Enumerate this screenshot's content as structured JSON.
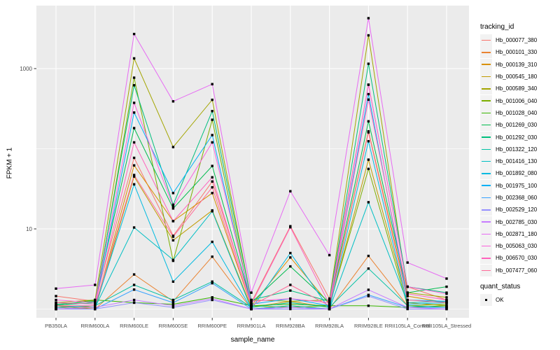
{
  "chart_data": {
    "type": "line",
    "title": "",
    "xlabel": "sample_name",
    "ylabel": "FPKM + 1",
    "y_scale": "log10",
    "y_ticks_labeled": [
      10,
      1000
    ],
    "y_gridlines_unlabeled": [
      1,
      100
    ],
    "ylim": [
      0.8,
      6000
    ],
    "grid": "on",
    "legend_position": "right",
    "legend_title": "tracking_id",
    "panel_bg": "#EBEBEB",
    "gridline_color": "#FFFFFF",
    "axis_text_color": "#4D4D4D",
    "tick_color": "#333333",
    "point_color": "#000000",
    "legend_key_bg": "#F2F2F2",
    "categories": [
      "PB350LA",
      "RRIM600LA",
      "RRIM600LE",
      "RRIM600SE",
      "RRIM600PE",
      "RRIM901LA",
      "RRIM928BA",
      "RRIM928LA",
      "RRIM928LE",
      "RRII105LA_Control",
      "RRII105LA_Stressed"
    ],
    "series": [
      {
        "name": "Hb_000077_380",
        "color": "#F8766D",
        "values": [
          1.45,
          1.25,
          77,
          8.2,
          39,
          1.2,
          10.8,
          1.35,
          630,
          1.9,
          1.3
        ]
      },
      {
        "name": "Hb_000101_330",
        "color": "#EA8331",
        "values": [
          1.05,
          1.0,
          2.7,
          1.25,
          4.5,
          1.0,
          1.1,
          1.0,
          4.6,
          1.1,
          1.05
        ]
      },
      {
        "name": "Hb_000139_310",
        "color": "#D89000",
        "values": [
          1.1,
          1.05,
          62,
          12.5,
          28,
          1.1,
          4.4,
          1.15,
          165,
          1.45,
          1.2
        ]
      },
      {
        "name": "Hb_000545_180",
        "color": "#C09B00",
        "values": [
          1.1,
          1.0,
          45,
          7.2,
          17,
          1.05,
          1.25,
          1.05,
          73,
          1.2,
          1.1
        ]
      },
      {
        "name": "Hb_000589_340",
        "color": "#A3A500",
        "values": [
          1.2,
          1.3,
          1340,
          105,
          408,
          1.3,
          1.25,
          1.3,
          2600,
          1.6,
          1.4
        ]
      },
      {
        "name": "Hb_001006_040",
        "color": "#7CAE00",
        "values": [
          1.05,
          1.1,
          770,
          4.0,
          230,
          1.1,
          1.05,
          1.1,
          56,
          1.1,
          1.15
        ]
      },
      {
        "name": "Hb_001028_040",
        "color": "#39B600",
        "values": [
          1.1,
          1.3,
          1.2,
          1.15,
          1.4,
          1.1,
          1.15,
          1.1,
          1.1,
          1.05,
          1.1
        ]
      },
      {
        "name": "Hb_001269_030",
        "color": "#00BB4E",
        "values": [
          1.15,
          1.25,
          181,
          18,
          61,
          1.2,
          3.4,
          1.2,
          220,
          1.6,
          1.9
        ]
      },
      {
        "name": "Hb_001292_030",
        "color": "#00BF7D",
        "values": [
          1.12,
          1.2,
          620,
          20,
          295,
          1.3,
          1.7,
          1.25,
          1150,
          1.9,
          1.6
        ]
      },
      {
        "name": "Hb_001322_120",
        "color": "#00C1A3",
        "values": [
          1.05,
          1.1,
          2.0,
          1.3,
          2.2,
          1.05,
          1.2,
          1.05,
          3.2,
          1.1,
          1.05
        ]
      },
      {
        "name": "Hb_001416_130",
        "color": "#00BFC4",
        "values": [
          1.0,
          1.05,
          10.4,
          4.1,
          16.6,
          1.0,
          1.1,
          1.0,
          21.5,
          1.2,
          1.25
        ]
      },
      {
        "name": "Hb_001892_080",
        "color": "#00BAE0",
        "values": [
          1.0,
          1.05,
          36,
          2.2,
          6.9,
          1.0,
          5.0,
          1.0,
          124,
          1.15,
          1.2
        ]
      },
      {
        "name": "Hb_001975_100",
        "color": "#00B0F6",
        "values": [
          1.05,
          1.1,
          283,
          28,
          148,
          1.15,
          1.35,
          1.1,
          480,
          1.3,
          1.25
        ]
      },
      {
        "name": "Hb_002368_060",
        "color": "#35A2FF",
        "values": [
          1.0,
          1.0,
          1.75,
          1.2,
          2.1,
          1.0,
          1.05,
          1.0,
          1.5,
          1.05,
          1.05
        ]
      },
      {
        "name": "Hb_002529_120",
        "color": "#9590FF",
        "values": [
          1.0,
          1.0,
          1.2,
          1.05,
          1.3,
          1.0,
          1.0,
          1.0,
          1.45,
          1.0,
          1.0
        ]
      },
      {
        "name": "Hb_002785_030",
        "color": "#C77CFF",
        "values": [
          1.0,
          1.05,
          1.3,
          1.1,
          1.35,
          1.0,
          1.05,
          1.0,
          1.74,
          1.05,
          1.0
        ]
      },
      {
        "name": "Hb_002871_180",
        "color": "#E76BF3",
        "values": [
          1.8,
          2.0,
          2700,
          390,
          640,
          1.6,
          29.5,
          4.7,
          4250,
          3.8,
          2.4
        ]
      },
      {
        "name": "Hb_005063_030",
        "color": "#FA62DB",
        "values": [
          1.3,
          1.2,
          374,
          19,
          120,
          1.25,
          1.35,
          1.2,
          630,
          1.9,
          1.55
        ]
      },
      {
        "name": "Hb_006570_030",
        "color": "#FF62BC",
        "values": [
          1.2,
          1.15,
          120,
          12.5,
          44,
          1.15,
          10.5,
          1.15,
          410,
          1.55,
          1.3
        ]
      },
      {
        "name": "Hb_007477_060",
        "color": "#FF6A98",
        "values": [
          1.1,
          1.1,
          47,
          8.0,
          33,
          1.1,
          2.0,
          1.1,
          160,
          1.3,
          1.2
        ]
      }
    ],
    "shape_legend": {
      "title": "quant_status",
      "items": [
        {
          "label": "OK",
          "marker": "black-square"
        }
      ]
    }
  }
}
